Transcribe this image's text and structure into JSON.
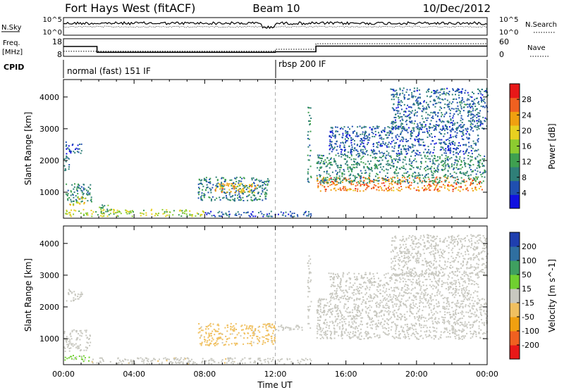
{
  "header": {
    "title": "Fort Hays West (fitACF)",
    "beam": "Beam 10",
    "date": "10/Dec/2012"
  },
  "top_panels": {
    "nsky_label": "N.Sky",
    "nsearch_label": "N.Search",
    "noise_ticks": [
      "10^5",
      "10^0"
    ],
    "freq_label_1": "Freq.",
    "freq_label_2": "[MHz]",
    "freq_ticks": [
      "18",
      "8"
    ],
    "nave_label": "Nave",
    "nave_ticks": [
      "60",
      "0"
    ],
    "cpid_label": "CPID",
    "cpid_1": "normal (fast) 151 IF",
    "cpid_2": "rbsp 200 IF"
  },
  "colors": {
    "power": [
      "#1010e0",
      "#1f4fb0",
      "#2f7f78",
      "#3fa050",
      "#8ccc30",
      "#e8d020",
      "#f0a010",
      "#f06020",
      "#e81818"
    ],
    "velocity": [
      "#e81818",
      "#f06020",
      "#f0a010",
      "#f0c060",
      "#c8c8c0",
      "#70d030",
      "#3f9f60",
      "#2f6fa0",
      "#1f3faf"
    ]
  },
  "chart_data": [
    {
      "type": "line",
      "name": "noise",
      "series": [
        {
          "name": "N.Sky",
          "style": "solid"
        },
        {
          "name": "N.Search",
          "style": "dotted"
        }
      ]
    },
    {
      "type": "line",
      "name": "freq_nave",
      "xlim": [
        0,
        24
      ],
      "series": [
        {
          "name": "Freq.",
          "style": "solid",
          "x": [
            0,
            1.9,
            1.9,
            12.0,
            12.0,
            14.3,
            14.3,
            24
          ],
          "y": [
            13.6,
            13.6,
            10.3,
            10.3,
            10.6,
            10.6,
            13.8,
            13.8
          ]
        },
        {
          "name": "Nave",
          "style": "dotted",
          "x": [
            0,
            1.9,
            1.9,
            12.0,
            12.0,
            14.3,
            14.3,
            24
          ],
          "y": [
            17,
            17,
            17,
            17,
            24,
            24,
            43,
            43
          ]
        }
      ]
    },
    {
      "type": "heatmap",
      "name": "power",
      "xlabel": "",
      "ylabel": "Slant Range [km]",
      "xlim": [
        0,
        24
      ],
      "ylim": [
        180,
        4550
      ],
      "yticks": [
        1000,
        2000,
        3000,
        4000
      ],
      "colorbar": {
        "label": "Power [dB]",
        "ticks": [
          4,
          8,
          12,
          16,
          20,
          24,
          28
        ],
        "range": [
          0,
          32
        ]
      },
      "regions": [
        {
          "t0": 0.0,
          "t1": 0.3,
          "r0": 1700,
          "r1": 2200,
          "value": 7
        },
        {
          "t0": 0.1,
          "t1": 1.1,
          "r0": 2200,
          "r1": 2600,
          "value": 6
        },
        {
          "t0": 0.1,
          "t1": 1.6,
          "r0": 700,
          "r1": 1300,
          "value": 10
        },
        {
          "t0": 0.3,
          "t1": 1.2,
          "r0": 600,
          "r1": 900,
          "value": 20
        },
        {
          "t0": 0.0,
          "t1": 8.0,
          "r0": 260,
          "r1": 480,
          "value": 17
        },
        {
          "t0": 1.9,
          "t1": 2.5,
          "r0": 350,
          "r1": 700,
          "value": 12
        },
        {
          "t0": 7.6,
          "t1": 11.6,
          "r0": 750,
          "r1": 1500,
          "value": 9
        },
        {
          "t0": 8.5,
          "t1": 11.0,
          "r0": 1000,
          "r1": 1300,
          "value": 22
        },
        {
          "t0": 8.0,
          "t1": 14.0,
          "r0": 250,
          "r1": 420,
          "value": 6
        },
        {
          "t0": 13.8,
          "t1": 14.0,
          "r0": 1300,
          "r1": 3700,
          "value": 10
        },
        {
          "t0": 14.3,
          "t1": 23.7,
          "r0": 1050,
          "r1": 1500,
          "value": 25
        },
        {
          "t0": 14.3,
          "t1": 23.9,
          "r0": 1300,
          "r1": 2200,
          "value": 10
        },
        {
          "t0": 15.0,
          "t1": 23.5,
          "r0": 2200,
          "r1": 3100,
          "value": 6
        },
        {
          "t0": 18.5,
          "t1": 24.0,
          "r0": 3000,
          "r1": 4300,
          "value": 7
        }
      ]
    },
    {
      "type": "heatmap",
      "name": "velocity",
      "xlabel": "Time UT",
      "ylabel": "Slant Range [km]",
      "xlim": [
        0,
        24
      ],
      "ylim": [
        180,
        4550
      ],
      "yticks": [
        1000,
        2000,
        3000,
        4000
      ],
      "xticks": [
        "00:00",
        "04:00",
        "08:00",
        "12:00",
        "16:00",
        "20:00",
        "00:00"
      ],
      "colorbar": {
        "label": "Velocity [m s^-1]",
        "ticks": [
          "200",
          "100",
          "50",
          "15",
          "-15",
          "-50",
          "-100",
          "-200"
        ],
        "range": [
          -250,
          250
        ]
      },
      "regions": [
        {
          "t0": 0.0,
          "t1": 1.5,
          "r0": 600,
          "r1": 1300,
          "value": 0
        },
        {
          "t0": 0.1,
          "t1": 1.1,
          "r0": 2200,
          "r1": 2600,
          "value": 0
        },
        {
          "t0": 0.0,
          "t1": 1.5,
          "r0": 300,
          "r1": 500,
          "value": 40
        },
        {
          "t0": 1.5,
          "t1": 14.0,
          "r0": 220,
          "r1": 420,
          "value": -10
        },
        {
          "t0": 7.6,
          "t1": 12.0,
          "r0": 800,
          "r1": 1500,
          "value": -45
        },
        {
          "t0": 12.0,
          "t1": 13.5,
          "r0": 1250,
          "r1": 1450,
          "value": 0
        },
        {
          "t0": 13.8,
          "t1": 14.0,
          "r0": 1300,
          "r1": 3700,
          "value": 0
        },
        {
          "t0": 14.3,
          "t1": 24.0,
          "r0": 1000,
          "r1": 2300,
          "value": 0
        },
        {
          "t0": 15.0,
          "t1": 23.5,
          "r0": 2300,
          "r1": 3100,
          "value": 0
        },
        {
          "t0": 18.5,
          "t1": 24.0,
          "r0": 3000,
          "r1": 4300,
          "value": 0
        }
      ]
    }
  ]
}
